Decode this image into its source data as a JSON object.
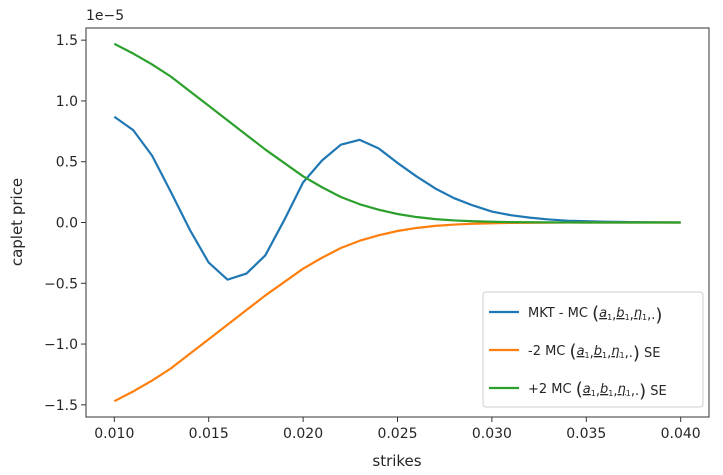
{
  "chart_data": {
    "type": "line",
    "title": "",
    "xlabel": "strikes",
    "ylabel": "caplet price",
    "offset_text": "1e−5",
    "xlim": [
      0.0085,
      0.0415
    ],
    "ylim": [
      -1.6,
      1.6
    ],
    "xticks": [
      0.01,
      0.015,
      0.02,
      0.025,
      0.03,
      0.035,
      0.04
    ],
    "xtick_labels": [
      "0.010",
      "0.015",
      "0.020",
      "0.025",
      "0.030",
      "0.035",
      "0.040"
    ],
    "yticks": [
      -1.5,
      -1.0,
      -0.5,
      0.0,
      0.5,
      1.0,
      1.5
    ],
    "ytick_labels": [
      "−1.5",
      "−1.0",
      "−0.5",
      "0.0",
      "0.5",
      "1.0",
      "1.5"
    ],
    "grid": false,
    "legend_position": "bottom-right",
    "x": [
      0.01,
      0.011,
      0.012,
      0.013,
      0.014,
      0.015,
      0.016,
      0.017,
      0.018,
      0.019,
      0.02,
      0.021,
      0.022,
      0.023,
      0.024,
      0.025,
      0.026,
      0.027,
      0.028,
      0.029,
      0.03,
      0.031,
      0.032,
      0.033,
      0.034,
      0.035,
      0.036,
      0.037,
      0.038,
      0.039,
      0.04
    ],
    "series": [
      {
        "name": "MKT - MC(a̲₁, b̲₁, η̲₁, .)",
        "color": "#1f77b4",
        "values": [
          0.87,
          0.76,
          0.55,
          0.25,
          -0.06,
          -0.33,
          -0.47,
          -0.42,
          -0.27,
          0.02,
          0.33,
          0.51,
          0.64,
          0.68,
          0.61,
          0.49,
          0.38,
          0.28,
          0.2,
          0.14,
          0.09,
          0.06,
          0.04,
          0.025,
          0.015,
          0.01,
          0.006,
          0.004,
          0.002,
          0.001,
          0.0
        ]
      },
      {
        "name": "-2 MC(a̲₁, b̲₁, η̲₁, .) SE",
        "color": "#ff7f0e",
        "values": [
          -1.47,
          -1.39,
          -1.3,
          -1.2,
          -1.08,
          -0.96,
          -0.84,
          -0.72,
          -0.6,
          -0.49,
          -0.38,
          -0.29,
          -0.21,
          -0.15,
          -0.105,
          -0.07,
          -0.045,
          -0.028,
          -0.017,
          -0.01,
          -0.006,
          -0.003,
          -0.002,
          -0.001,
          -0.0005,
          0.0,
          0.0,
          0.0,
          0.0,
          0.0,
          0.0
        ]
      },
      {
        "name": "+2 MC(a̲₁, b̲₁, η̲₁, .) SE",
        "color": "#2ca02c",
        "values": [
          1.47,
          1.39,
          1.3,
          1.2,
          1.08,
          0.96,
          0.84,
          0.72,
          0.6,
          0.49,
          0.38,
          0.29,
          0.21,
          0.15,
          0.105,
          0.07,
          0.045,
          0.028,
          0.017,
          0.01,
          0.006,
          0.003,
          0.002,
          0.001,
          0.0005,
          0.0,
          0.0,
          0.0,
          0.0,
          0.0,
          0.0
        ]
      }
    ]
  },
  "legend": {
    "entries": [
      {
        "prefix": "MKT - MC",
        "suffix": ""
      },
      {
        "prefix": "-2 MC",
        "suffix": "SE"
      },
      {
        "prefix": "+2 MC",
        "suffix": "SE"
      }
    ],
    "math_a": "a",
    "math_b": "b",
    "math_eta": "η",
    "math_sub": "1",
    "math_dot": "."
  }
}
